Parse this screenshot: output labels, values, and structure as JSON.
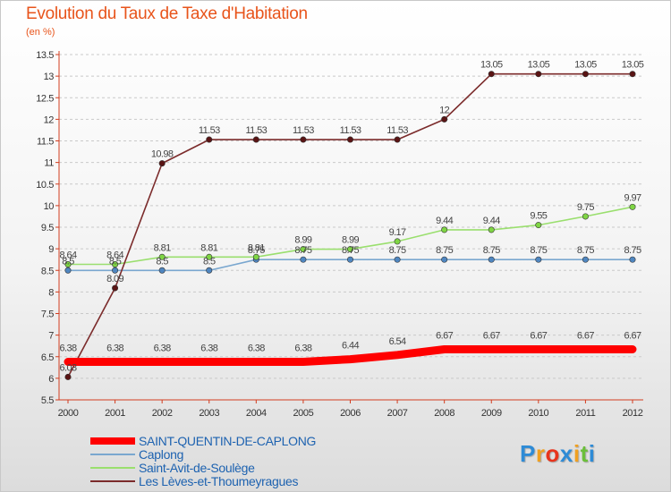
{
  "title": "Evolution du Taux de Taxe d'Habitation",
  "unit": "(en %)",
  "chart_data": {
    "type": "line",
    "title": "Evolution du Taux de Taxe d'Habitation",
    "ylabel": "(en %)",
    "xlabel": "",
    "x": [
      "2000",
      "2001",
      "2002",
      "2003",
      "2004",
      "2005",
      "2006",
      "2007",
      "2008",
      "2009",
      "2010",
      "2011",
      "2012"
    ],
    "ylim": [
      5.5,
      13.5
    ],
    "yticks": [
      "5.5",
      "6",
      "6.5",
      "7",
      "7.5",
      "8",
      "8.5",
      "9",
      "9.5",
      "10",
      "10.5",
      "11",
      "11.5",
      "12",
      "12.5",
      "13",
      "13.5"
    ],
    "grid": "horizontal dashed",
    "legend": "bottom-left",
    "series": [
      {
        "name": "SAINT-QUENTIN-DE-CAPLONG",
        "color": "#ff0000",
        "values": [
          6.38,
          6.38,
          6.38,
          6.38,
          6.38,
          6.38,
          6.44,
          6.54,
          6.67,
          6.67,
          6.67,
          6.67,
          6.67
        ],
        "labels": [
          "6.38",
          "6.38",
          "6.38",
          "6.38",
          "6.38",
          "6.38",
          "6.44",
          "6.54",
          "6.67",
          "6.67",
          "6.67",
          "6.67",
          "6.67"
        ]
      },
      {
        "name": "Caplong",
        "color": "#7aa7cf",
        "values": [
          8.5,
          8.5,
          8.5,
          8.5,
          8.75,
          8.75,
          8.75,
          8.75,
          8.75,
          8.75,
          8.75,
          8.75,
          8.75
        ],
        "labels": [
          "8.5",
          "8.5",
          "8.5",
          "8.5",
          "8.75",
          "8.75",
          "8.75",
          "8.75",
          "8.75",
          "8.75",
          "8.75",
          "8.75",
          "8.75"
        ]
      },
      {
        "name": "Saint-Avit-de-Soulège",
        "color": "#9adf6e",
        "values": [
          8.64,
          8.64,
          8.81,
          8.81,
          8.81,
          8.99,
          8.99,
          9.17,
          9.44,
          9.44,
          9.55,
          9.75,
          9.97
        ],
        "labels": [
          "8.64",
          "8.64",
          "8.81",
          "8.81",
          "8.81",
          "8.99",
          "8.99",
          "9.17",
          "9.44",
          "9.44",
          "9.55",
          "9.75",
          "9.97"
        ]
      },
      {
        "name": "Les Lèves-et-Thoumeyragues",
        "color": "#7b2b2b",
        "values": [
          6.03,
          8.09,
          10.98,
          11.53,
          11.53,
          11.53,
          11.53,
          11.53,
          12,
          13.05,
          13.05,
          13.05,
          13.05
        ],
        "labels": [
          "6.03",
          "8.09",
          "10.98",
          "11.53",
          "11.53",
          "11.53",
          "11.53",
          "11.53",
          "12",
          "13.05",
          "13.05",
          "13.05",
          "13.05"
        ]
      }
    ]
  },
  "logo": {
    "text": "Proxiti",
    "colors": [
      "#2e8bd6",
      "#f0a020",
      "#e8341c",
      "#2e8bd6",
      "#f0a020",
      "#6bbf3a",
      "#2e8bd6"
    ]
  }
}
